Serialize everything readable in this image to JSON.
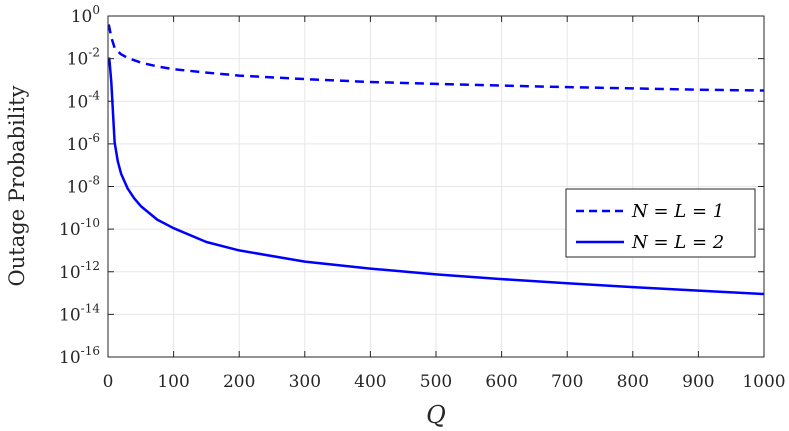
{
  "chart_data": {
    "type": "line",
    "xlabel": "Q",
    "ylabel": "Outage Probability",
    "xlim": [
      0,
      1000
    ],
    "ylim": [
      1e-16,
      1
    ],
    "yscale": "log",
    "grid": true,
    "legend_position": "right",
    "x_ticks": [
      "0",
      "100",
      "200",
      "300",
      "400",
      "500",
      "600",
      "700",
      "800",
      "900",
      "1000"
    ],
    "y_ticks": [
      {
        "base": "10",
        "exp": "0"
      },
      {
        "base": "10",
        "exp": "-2"
      },
      {
        "base": "10",
        "exp": "-4"
      },
      {
        "base": "10",
        "exp": "-6"
      },
      {
        "base": "10",
        "exp": "-8"
      },
      {
        "base": "10",
        "exp": "-10"
      },
      {
        "base": "10",
        "exp": "-12"
      },
      {
        "base": "10",
        "exp": "-14"
      },
      {
        "base": "10",
        "exp": "-16"
      }
    ],
    "series": [
      {
        "name": "N = L = 1",
        "style": "dashed",
        "color": "#0000ff",
        "x": [
          1,
          2,
          5,
          10,
          15,
          20,
          30,
          50,
          75,
          100,
          150,
          200,
          300,
          400,
          500,
          600,
          700,
          800,
          900,
          1000
        ],
        "y": [
          0.4,
          0.3,
          0.1,
          0.032,
          0.022,
          0.016,
          0.0108,
          0.0065,
          0.0043,
          0.0032,
          0.0022,
          0.0016,
          0.0011,
          0.0008,
          0.00065,
          0.00054,
          0.00046,
          0.0004,
          0.00035,
          0.00032
        ]
      },
      {
        "name": "N = L = 2",
        "style": "solid",
        "color": "#0000ff",
        "x": [
          1,
          2,
          5,
          10,
          15,
          20,
          30,
          40,
          50,
          75,
          100,
          150,
          200,
          300,
          400,
          500,
          600,
          700,
          800,
          900,
          1000
        ],
        "y": [
          0.01,
          0.01,
          0.0008,
          1.2e-06,
          1.5e-07,
          4e-08,
          8e-09,
          2.8e-09,
          1.2e-09,
          2.8e-10,
          1.1e-10,
          2.5e-11,
          1e-11,
          3e-12,
          1.4e-12,
          7.5e-13,
          4.5e-13,
          2.9e-13,
          1.9e-13,
          1.3e-13,
          9e-14
        ]
      }
    ]
  }
}
